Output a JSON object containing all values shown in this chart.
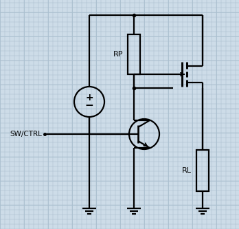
{
  "bg_color": "#cddce8",
  "grid_color": "#aabfcf",
  "line_color": "#000000",
  "sw_ctrl_label": "SW/CTRL",
  "rp_label": "RP",
  "rl_label": "RL",
  "figw": 3.48,
  "figh": 3.33,
  "dpi": 100
}
